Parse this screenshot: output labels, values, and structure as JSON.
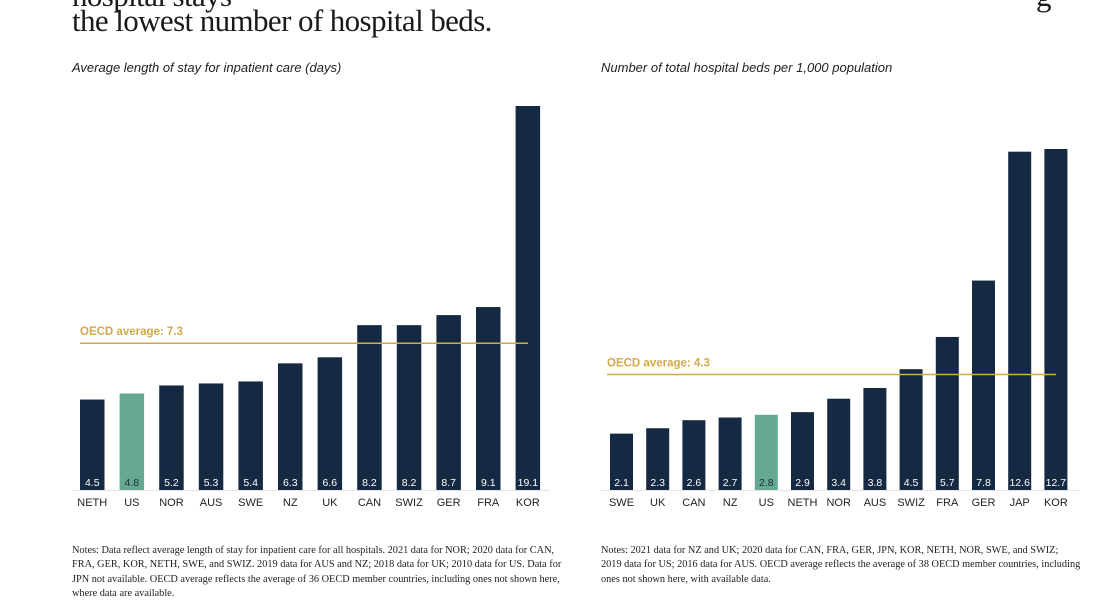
{
  "header": {
    "title_fragment_top": "hospital stays",
    "title_fragment_right": "g",
    "title": "the lowest number of hospital beds."
  },
  "colors": {
    "bar": "#152a42",
    "highlight": "#67a892",
    "average": "#d1a84e",
    "baseline": "#e3e3e3"
  },
  "chart_data": [
    {
      "type": "bar",
      "title": "Average length of stay for inpatient care (days)",
      "xlabel": "",
      "ylabel": "",
      "categories": [
        "NETH",
        "US",
        "NOR",
        "AUS",
        "SWE",
        "NZ",
        "UK",
        "CAN",
        "SWIZ",
        "GER",
        "FRA",
        "KOR"
      ],
      "values": [
        4.5,
        4.8,
        5.2,
        5.3,
        5.4,
        6.3,
        6.6,
        8.2,
        8.2,
        8.7,
        9.1,
        19.1
      ],
      "value_labels": [
        "4.5",
        "4.8",
        "5.2",
        "5.3",
        "5.4",
        "6.3",
        "6.6",
        "8.2",
        "8.2",
        "8.7",
        "9.1",
        "19.1"
      ],
      "highlight_category": "US",
      "reference_line": {
        "label": "OECD average: 7.3",
        "value": 7.3
      },
      "ylim": [
        0,
        19.1
      ],
      "grid": false,
      "legend": "none",
      "notes": "Notes: Data reflect average length of stay for inpatient care for all hospitals. 2021 data for NOR; 2020 data for CAN, FRA, GER, KOR, NETH, SWE, and SWIZ. 2019 data for AUS and NZ; 2018 data for UK; 2010 data for US. Data for JPN not available. OECD average reflects the average of 36 OECD member countries, including ones not shown here, where data are available."
    },
    {
      "type": "bar",
      "title": "Number of total hospital beds per 1,000 population",
      "xlabel": "",
      "ylabel": "",
      "categories": [
        "SWE",
        "UK",
        "CAN",
        "NZ",
        "US",
        "NETH",
        "NOR",
        "AUS",
        "SWIZ",
        "FRA",
        "GER",
        "JAP",
        "KOR"
      ],
      "values": [
        2.1,
        2.3,
        2.6,
        2.7,
        2.8,
        2.9,
        3.4,
        3.8,
        4.5,
        5.7,
        7.8,
        12.6,
        12.7
      ],
      "value_labels": [
        "2.1",
        "2.3",
        "2.6",
        "2.7",
        "2.8",
        "2.9",
        "3.4",
        "3.8",
        "4.5",
        "5.7",
        "7.8",
        "12.6",
        "12.7"
      ],
      "highlight_category": "US",
      "reference_line": {
        "label": "OECD average: 4.3",
        "value": 4.3
      },
      "ylim": [
        0,
        12.7
      ],
      "grid": false,
      "legend": "none",
      "notes": "Notes: 2021 data for NZ and UK; 2020 data for CAN, FRA, GER, JPN, KOR, NETH, NOR, SWE, and SWIZ; 2019 data for US; 2016 data for AUS. OECD average reflects the average of 38 OECD member countries, including ones not shown here, with available data."
    }
  ]
}
